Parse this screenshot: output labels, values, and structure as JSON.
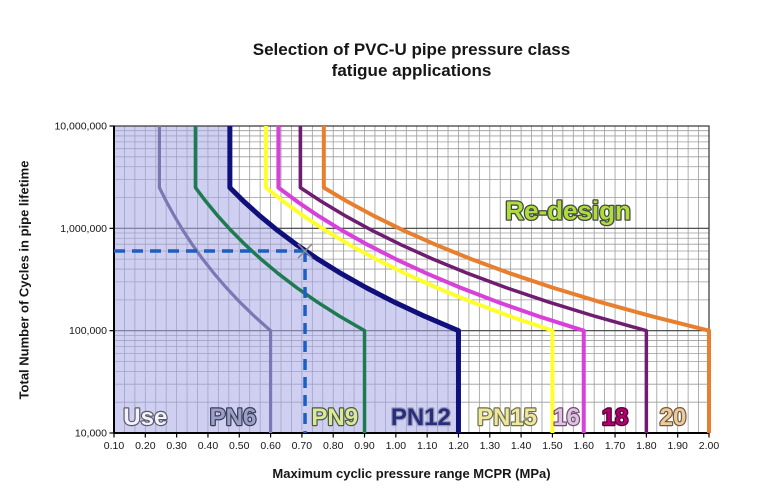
{
  "title": {
    "line1": "Selection of PVC-U pipe pressure class",
    "line2": "fatigue applications"
  },
  "x_axis": {
    "label": "Maximum cyclic pressure range MCPR (MPa)",
    "min": 0.1,
    "max": 2.0,
    "major_step": 0.1,
    "minor_divisions_per_major": 3,
    "tick_labels": [
      {
        "label": "0.10",
        "value": 0.1
      },
      {
        "label": "0.20",
        "value": 0.2
      },
      {
        "label": "0.30",
        "value": 0.3
      },
      {
        "label": "0.40",
        "value": 0.4
      },
      {
        "label": "0.50",
        "value": 0.5
      },
      {
        "label": "0.60",
        "value": 0.6
      },
      {
        "label": "0.70",
        "value": 0.7
      },
      {
        "label": "0.80",
        "value": 0.8
      },
      {
        "label": "0.90",
        "value": 0.9
      },
      {
        "label": "1.00",
        "value": 1.0
      },
      {
        "label": "1.10",
        "value": 1.1
      },
      {
        "label": "1.20",
        "value": 1.2
      },
      {
        "label": "1.30",
        "value": 1.3
      },
      {
        "label": "1.40",
        "value": 1.4
      },
      {
        "label": "1.50",
        "value": 1.5
      },
      {
        "label": "1.60",
        "value": 1.6
      },
      {
        "label": "1.70",
        "value": 1.7
      },
      {
        "label": "1.80",
        "value": 1.8
      },
      {
        "label": "1.90",
        "value": 1.9
      },
      {
        "label": "2.00",
        "value": 2.0
      }
    ]
  },
  "y_axis": {
    "label": "Total Number of Cycles in pipe lifetime",
    "scale": "log",
    "min": 10000,
    "max": 10000000,
    "tick_labels": [
      {
        "label": "10,000,000",
        "value": 10000000
      },
      {
        "label": "1,000,000",
        "value": 1000000
      },
      {
        "label": "100,000",
        "value": 100000
      },
      {
        "label": "10,000",
        "value": 10000
      }
    ]
  },
  "chart_data": {
    "type": "line",
    "grid": true,
    "knee_cycles": 2500000,
    "top_cycles": 10000000,
    "mid_cycles": 100000,
    "floor_cycles": 10000,
    "series": [
      {
        "name": "PN6",
        "color": "#7878b4",
        "width": 3.2,
        "mcpr_at_high_cycles": 0.245,
        "mcpr_at_1e5": 0.6
      },
      {
        "name": "PN9",
        "color": "#1e7a50",
        "width": 3.5,
        "mcpr_at_high_cycles": 0.36,
        "mcpr_at_1e5": 0.9
      },
      {
        "name": "PN15",
        "color": "#ffff2d",
        "width": 4.0,
        "mcpr_at_high_cycles": 0.585,
        "mcpr_at_1e5": 1.5
      },
      {
        "name": "PN16",
        "color": "#d93fd9",
        "width": 4.0,
        "mcpr_at_high_cycles": 0.625,
        "mcpr_at_1e5": 1.6
      },
      {
        "name": "PN18",
        "color": "#6f1d70",
        "width": 3.5,
        "mcpr_at_high_cycles": 0.695,
        "mcpr_at_1e5": 1.8
      },
      {
        "name": "PN20",
        "color": "#e87f2e",
        "width": 4.0,
        "mcpr_at_high_cycles": 0.77,
        "mcpr_at_1e5": 2.0
      },
      {
        "name": "PN12",
        "color": "#10107d",
        "width": 5.0,
        "mcpr_at_high_cycles": 0.47,
        "mcpr_at_1e5": 1.2
      }
    ],
    "use_region": {
      "bounded_by": "PN12",
      "fill": "rgba(168,168,230,0.55)"
    },
    "design_point": {
      "mcpr": 0.71,
      "cycles": 600000,
      "marker": "x",
      "marker_color": "#8a8a8a",
      "dash_color": "#1b5fc4"
    },
    "zone_labels": [
      {
        "text": "Use",
        "center_mcpr": 0.2,
        "fill": "#f2f2f8",
        "outline": "#5a5a6e"
      },
      {
        "text": "PN6",
        "center_mcpr": 0.48,
        "fill": "#9aa0c8",
        "outline": "#3c3c55"
      },
      {
        "text": "PN9",
        "center_mcpr": 0.805,
        "fill": "#dce79c",
        "outline": "#4a5a40"
      },
      {
        "text": "PN12",
        "center_mcpr": 1.08,
        "fill": "#272e7d",
        "outline": "#9a9ab8"
      },
      {
        "text": "PN15",
        "center_mcpr": 1.355,
        "fill": "#efe79c",
        "outline": "#6e6e50"
      },
      {
        "text": "16",
        "center_mcpr": 1.545,
        "fill": "#e3c1e3",
        "outline": "#6e506e"
      },
      {
        "text": "18",
        "center_mcpr": 1.7,
        "fill": "#b0006e",
        "outline": "#50002e"
      },
      {
        "text": "20",
        "center_mcpr": 1.885,
        "fill": "#efc99e",
        "outline": "#6e5a3c"
      }
    ],
    "annotation": {
      "text": "Re-design",
      "fill": "#addf3a",
      "outline": "#474747",
      "mcpr": 1.55,
      "cycles": 1500000
    }
  }
}
